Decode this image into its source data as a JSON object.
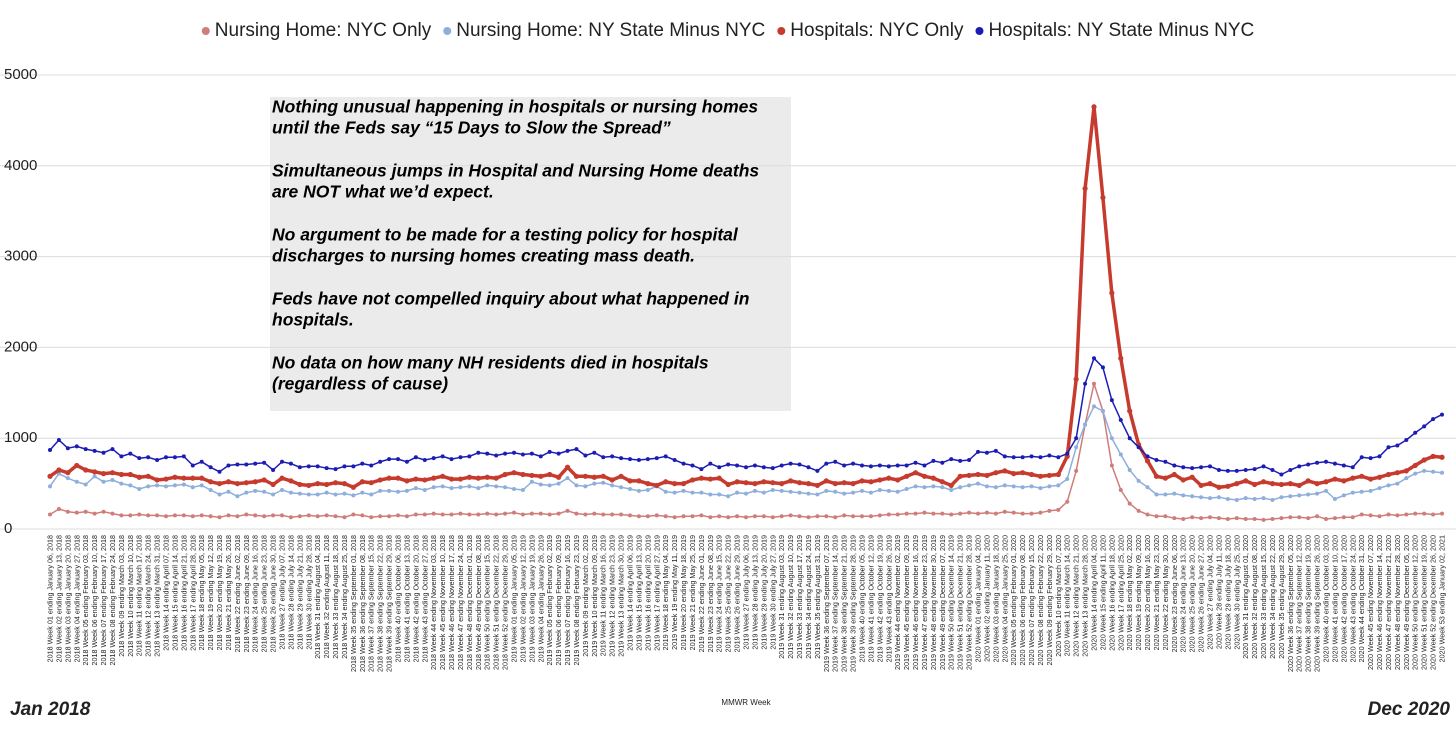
{
  "chart_data": {
    "type": "line",
    "legend": "top",
    "grid": true,
    "ylim": [
      0,
      5000
    ],
    "yticks": [
      0,
      1000,
      2000,
      3000,
      4000,
      5000
    ],
    "x_label": "MMWR Week",
    "start_label": "Jan 2018",
    "end_label": "Dec 2020",
    "annotation": [
      [
        "Nothing unusual happening in hospitals or nursing homes",
        "until the Feds say “15 Days to Slow the Spread”"
      ],
      [
        "Simultaneous jumps in Hospital and Nursing Home deaths",
        "are NOT what we’d expect."
      ],
      [
        "No argument to be made for a testing policy for hospital",
        "discharges to nursing homes creating mass death."
      ],
      [
        "Feds have not compelled inquiry about what happened in",
        "hospitals."
      ],
      [
        "No data on how many NH residents died in hospitals",
        "(regardless of cause)"
      ]
    ],
    "categories": [
      "2018 Week 01 ending January 06, 2018",
      "2018 Week 02 ending January 13, 2018",
      "2018 Week 03 ending January 20, 2018",
      "2018 Week 04 ending January 27, 2018",
      "2018 Week 05 ending February 03, 2018",
      "2018 Week 06 ending February 10, 2018",
      "2018 Week 07 ending February 17, 2018",
      "2018 Week 08 ending February 24, 2018",
      "2018 Week 09 ending March 03, 2018",
      "2018 Week 10 ending March 10, 2018",
      "2018 Week 11 ending March 17, 2018",
      "2018 Week 12 ending March 24, 2018",
      "2018 Week 13 ending March 31, 2018",
      "2018 Week 14 ending April 07, 2018",
      "2018 Week 15 ending April 14, 2018",
      "2018 Week 16 ending April 21, 2018",
      "2018 Week 17 ending April 28, 2018",
      "2018 Week 18 ending May 05, 2018",
      "2018 Week 19 ending May 12, 2018",
      "2018 Week 20 ending May 19, 2018",
      "2018 Week 21 ending May 26, 2018",
      "2018 Week 22 ending June 02, 2018",
      "2018 Week 23 ending June 09, 2018",
      "2018 Week 24 ending June 16, 2018",
      "2018 Week 25 ending June 23, 2018",
      "2018 Week 26 ending June 30, 2018",
      "2018 Week 27 ending July 07, 2018",
      "2018 Week 28 ending July 14, 2018",
      "2018 Week 29 ending July 21, 2018",
      "2018 Week 30 ending July 28, 2018",
      "2018 Week 31 ending August 04, 2018",
      "2018 Week 32 ending August 11, 2018",
      "2018 Week 33 ending August 18, 2018",
      "2018 Week 34 ending August 25, 2018",
      "2018 Week 35 ending September 01, 2018",
      "2018 Week 36 ending September 08, 2018",
      "2018 Week 37 ending September 15, 2018",
      "2018 Week 38 ending September 22, 2018",
      "2018 Week 39 ending September 29, 2018",
      "2018 Week 40 ending October 06, 2018",
      "2018 Week 41 ending October 13, 2018",
      "2018 Week 42 ending October 20, 2018",
      "2018 Week 43 ending October 27, 2018",
      "2018 Week 44 ending November 03, 2018",
      "2018 Week 45 ending November 10, 2018",
      "2018 Week 46 ending November 17, 2018",
      "2018 Week 47 ending November 24, 2018",
      "2018 Week 48 ending December 01, 2018",
      "2018 Week 49 ending December 08, 2018",
      "2018 Week 50 ending December 15, 2018",
      "2018 Week 51 ending December 22, 2018",
      "2018 Week 52 ending December 29, 2018",
      "2019 Week 01 ending January 05, 2019",
      "2019 Week 02 ending January 12, 2019",
      "2019 Week 03 ending January 19, 2019",
      "2019 Week 04 ending January 26, 2019",
      "2019 Week 05 ending February 02, 2019",
      "2019 Week 06 ending February 09, 2019",
      "2019 Week 07 ending February 16, 2019",
      "2019 Week 08 ending February 23, 2019",
      "2019 Week 09 ending March 02, 2019",
      "2019 Week 10 ending March 09, 2019",
      "2019 Week 11 ending March 16, 2019",
      "2019 Week 12 ending March 23, 2019",
      "2019 Week 13 ending March 30, 2019",
      "2019 Week 14 ending April 06, 2019",
      "2019 Week 15 ending April 13, 2019",
      "2019 Week 16 ending April 20, 2019",
      "2019 Week 17 ending April 27, 2019",
      "2019 Week 18 ending May 04, 2019",
      "2019 Week 19 ending May 11, 2019",
      "2019 Week 20 ending May 18, 2019",
      "2019 Week 21 ending May 25, 2019",
      "2019 Week 22 ending June 01, 2019",
      "2019 Week 23 ending June 08, 2019",
      "2019 Week 24 ending June 15, 2019",
      "2019 Week 25 ending June 22, 2019",
      "2019 Week 26 ending June 29, 2019",
      "2019 Week 27 ending July 06, 2019",
      "2019 Week 28 ending July 13, 2019",
      "2019 Week 29 ending July 20, 2019",
      "2019 Week 30 ending July 27, 2019",
      "2019 Week 31 ending August 03, 2019",
      "2019 Week 32 ending August 10, 2019",
      "2019 Week 33 ending August 17, 2019",
      "2019 Week 34 ending August 24, 2019",
      "2019 Week 35 ending August 31, 2019",
      "2019 Week 36 ending September 07, 2019",
      "2019 Week 37 ending September 14, 2019",
      "2019 Week 38 ending September 21, 2019",
      "2019 Week 39 ending September 28, 2019",
      "2019 Week 40 ending October 05, 2019",
      "2019 Week 41 ending October 12, 2019",
      "2019 Week 42 ending October 19, 2019",
      "2019 Week 43 ending October 26, 2019",
      "2019 Week 44 ending November 02, 2019",
      "2019 Week 45 ending November 09, 2019",
      "2019 Week 46 ending November 16, 2019",
      "2019 Week 47 ending November 23, 2019",
      "2019 Week 48 ending November 30, 2019",
      "2019 Week 49 ending December 07, 2019",
      "2019 Week 50 ending December 14, 2019",
      "2019 Week 51 ending December 21, 2019",
      "2019 Week 52 ending December 28, 2019",
      "2020 Week 01 ending January 04, 2020",
      "2020 Week 02 ending January 11, 2020",
      "2020 Week 03 ending January 18, 2020",
      "2020 Week 04 ending January 25, 2020",
      "2020 Week 05 ending February 01, 2020",
      "2020 Week 06 ending February 08, 2020",
      "2020 Week 07 ending February 15, 2020",
      "2020 Week 08 ending February 22, 2020",
      "2020 Week 09 ending February 29, 2020",
      "2020 Week 10 ending March 07, 2020",
      "2020 Week 11 ending March 14, 2020",
      "2020 Week 12 ending March 21, 2020",
      "2020 Week 13 ending March 28, 2020",
      "2020 Week 14 ending April 04, 2020",
      "2020 Week 15 ending April 11, 2020",
      "2020 Week 16 ending April 18, 2020",
      "2020 Week 17 ending April 25, 2020",
      "2020 Week 18 ending May 02, 2020",
      "2020 Week 19 ending May 09, 2020",
      "2020 Week 20 ending May 16, 2020",
      "2020 Week 21 ending May 23, 2020",
      "2020 Week 22 ending May 30, 2020",
      "2020 Week 23 ending June 06, 2020",
      "2020 Week 24 ending June 13, 2020",
      "2020 Week 25 ending June 20, 2020",
      "2020 Week 26 ending June 27, 2020",
      "2020 Week 27 ending July 04, 2020",
      "2020 Week 28 ending July 11, 2020",
      "2020 Week 29 ending July 18, 2020",
      "2020 Week 30 ending July 25, 2020",
      "2020 Week 31 ending August 01, 2020",
      "2020 Week 32 ending August 08, 2020",
      "2020 Week 33 ending August 15, 2020",
      "2020 Week 34 ending August 22, 2020",
      "2020 Week 35 ending August 29, 2020",
      "2020 Week 36 ending September 05, 2020",
      "2020 Week 37 ending September 12, 2020",
      "2020 Week 38 ending September 19, 2020",
      "2020 Week 39 ending September 26, 2020",
      "2020 Week 40 ending October 03, 2020",
      "2020 Week 41 ending October 10, 2020",
      "2020 Week 42 ending October 17, 2020",
      "2020 Week 43 ending October 24, 2020",
      "2020 Week 44 ending October 31, 2020",
      "2020 Week 45 ending November 07, 2020",
      "2020 Week 46 ending November 14, 2020",
      "2020 Week 47 ending November 21, 2020",
      "2020 Week 48 ending November 28, 2020",
      "2020 Week 49 ending December 05, 2020",
      "2020 Week 50 ending December 12, 2020",
      "2020 Week 51 ending December 19, 2020",
      "2020 Week 52 ending December 26, 2020",
      "2020 Week 53 ending January 02, 2021"
    ],
    "series": [
      {
        "name": "Nursing Home: NYC Only",
        "color": "#cf7d7a",
        "values": [
          160,
          220,
          190,
          180,
          190,
          170,
          190,
          170,
          150,
          150,
          160,
          150,
          150,
          140,
          150,
          150,
          140,
          150,
          140,
          130,
          150,
          140,
          160,
          150,
          140,
          150,
          150,
          130,
          140,
          150,
          140,
          150,
          140,
          130,
          160,
          150,
          130,
          140,
          140,
          150,
          140,
          160,
          160,
          170,
          160,
          160,
          170,
          160,
          160,
          170,
          160,
          170,
          180,
          160,
          170,
          170,
          160,
          170,
          200,
          170,
          160,
          170,
          160,
          160,
          160,
          150,
          140,
          140,
          150,
          140,
          130,
          140,
          140,
          150,
          130,
          140,
          130,
          140,
          130,
          140,
          140,
          130,
          140,
          150,
          140,
          130,
          140,
          140,
          130,
          150,
          140,
          140,
          140,
          150,
          160,
          160,
          170,
          170,
          180,
          170,
          170,
          160,
          170,
          180,
          170,
          180,
          170,
          190,
          180,
          170,
          170,
          180,
          200,
          210,
          300,
          640,
          1150,
          1600,
          1300,
          700,
          430,
          280,
          200,
          160,
          140,
          140,
          120,
          110,
          130,
          120,
          130,
          120,
          110,
          120,
          110,
          110,
          100,
          110,
          120,
          130,
          130,
          120,
          140,
          110,
          120,
          130,
          130,
          160,
          150,
          140,
          160,
          150,
          160,
          170,
          170,
          160,
          170
        ]
      },
      {
        "name": "Nursing Home: NY State Minus NYC",
        "color": "#8eaedc",
        "values": [
          470,
          610,
          560,
          520,
          490,
          580,
          520,
          540,
          500,
          480,
          440,
          470,
          480,
          470,
          480,
          490,
          460,
          480,
          430,
          380,
          410,
          360,
          400,
          420,
          410,
          380,
          430,
          400,
          390,
          380,
          380,
          400,
          380,
          390,
          370,
          400,
          380,
          420,
          420,
          410,
          420,
          450,
          430,
          460,
          470,
          450,
          460,
          470,
          450,
          480,
          470,
          460,
          440,
          430,
          520,
          490,
          480,
          500,
          560,
          480,
          470,
          500,
          510,
          480,
          460,
          440,
          420,
          430,
          470,
          410,
          400,
          420,
          400,
          400,
          380,
          380,
          360,
          400,
          390,
          420,
          400,
          430,
          420,
          410,
          400,
          390,
          380,
          420,
          410,
          390,
          400,
          420,
          400,
          430,
          420,
          410,
          440,
          470,
          460,
          470,
          460,
          430,
          460,
          480,
          500,
          470,
          460,
          480,
          470,
          460,
          470,
          450,
          470,
          480,
          550,
          900,
          1150,
          1350,
          1300,
          1000,
          820,
          650,
          530,
          460,
          380,
          380,
          390,
          370,
          360,
          350,
          340,
          350,
          330,
          320,
          340,
          330,
          340,
          320,
          350,
          360,
          370,
          380,
          390,
          420,
          330,
          370,
          400,
          410,
          420,
          450,
          480,
          500,
          560,
          610,
          640,
          630,
          620
        ]
      },
      {
        "name": "Hospitals: NYC Only",
        "color": "#c63b2e",
        "values": [
          580,
          650,
          620,
          700,
          650,
          630,
          610,
          620,
          600,
          600,
          570,
          580,
          540,
          550,
          570,
          560,
          560,
          560,
          520,
          500,
          520,
          500,
          510,
          520,
          540,
          490,
          560,
          530,
          490,
          480,
          500,
          490,
          510,
          500,
          460,
          520,
          510,
          540,
          560,
          560,
          530,
          550,
          540,
          560,
          580,
          550,
          550,
          570,
          560,
          570,
          560,
          600,
          620,
          600,
          590,
          580,
          600,
          570,
          680,
          580,
          580,
          570,
          580,
          540,
          580,
          530,
          530,
          500,
          480,
          520,
          500,
          500,
          540,
          560,
          550,
          560,
          490,
          520,
          510,
          500,
          520,
          510,
          500,
          530,
          510,
          500,
          480,
          530,
          500,
          510,
          500,
          530,
          520,
          540,
          560,
          540,
          580,
          620,
          580,
          560,
          520,
          480,
          580,
          590,
          600,
          590,
          620,
          640,
          610,
          620,
          600,
          580,
          590,
          600,
          800,
          1650,
          3750,
          4650,
          3650,
          2600,
          1880,
          1300,
          930,
          750,
          580,
          560,
          600,
          540,
          570,
          480,
          500,
          460,
          470,
          500,
          530,
          490,
          520,
          500,
          490,
          500,
          480,
          530,
          500,
          520,
          550,
          530,
          560,
          580,
          550,
          570,
          600,
          620,
          640,
          700,
          760,
          800,
          790
        ]
      },
      {
        "name": "Hospitals: NY State Minus NYC",
        "color": "#1c1cb4",
        "values": [
          870,
          980,
          890,
          910,
          880,
          860,
          840,
          880,
          800,
          830,
          780,
          790,
          760,
          790,
          790,
          800,
          700,
          740,
          680,
          630,
          700,
          710,
          710,
          720,
          730,
          650,
          740,
          720,
          680,
          690,
          690,
          670,
          660,
          690,
          690,
          720,
          700,
          740,
          770,
          770,
          740,
          790,
          760,
          780,
          800,
          770,
          790,
          800,
          840,
          830,
          810,
          830,
          840,
          820,
          830,
          800,
          850,
          830,
          860,
          880,
          810,
          840,
          790,
          800,
          780,
          770,
          760,
          770,
          780,
          800,
          760,
          720,
          700,
          660,
          720,
          680,
          710,
          700,
          680,
          700,
          680,
          670,
          700,
          720,
          710,
          680,
          640,
          720,
          740,
          700,
          720,
          700,
          690,
          700,
          690,
          700,
          700,
          730,
          700,
          750,
          730,
          770,
          750,
          760,
          850,
          840,
          860,
          800,
          790,
          790,
          800,
          790,
          810,
          790,
          830,
          1000,
          1600,
          1880,
          1780,
          1420,
          1200,
          1000,
          900,
          800,
          760,
          740,
          700,
          680,
          670,
          680,
          690,
          650,
          640,
          640,
          650,
          660,
          690,
          650,
          600,
          650,
          690,
          710,
          730,
          740,
          720,
          700,
          680,
          790,
          780,
          800,
          900,
          920,
          980,
          1060,
          1130,
          1210,
          1260
        ]
      }
    ]
  }
}
